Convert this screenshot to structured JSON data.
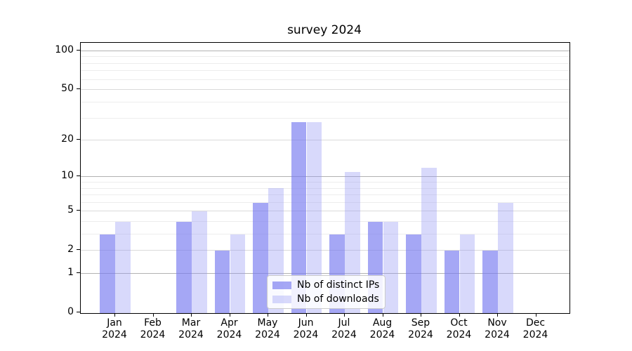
{
  "title": "survey 2024",
  "chart_data": {
    "type": "bar",
    "title": "survey 2024",
    "categories": [
      "Jan",
      "Feb",
      "Mar",
      "Apr",
      "May",
      "Jun",
      "Jul",
      "Aug",
      "Sep",
      "Oct",
      "Nov",
      "Dec"
    ],
    "year_label": "2024",
    "series": [
      {
        "name": "Nb of distinct IPs",
        "color": "rgba(118,121,240,0.66)",
        "values": [
          3,
          0,
          4,
          2,
          6,
          28,
          3,
          4,
          3,
          2,
          2,
          0
        ]
      },
      {
        "name": "Nb of downloads",
        "color": "rgba(148,151,244,0.36)",
        "values": [
          4,
          0,
          5,
          3,
          8,
          28,
          11,
          4,
          12,
          3,
          6,
          0
        ]
      }
    ],
    "xlabel": "",
    "ylabel": "",
    "y_scale": "log10(1+v)",
    "ylim": [
      0,
      114
    ],
    "y_ticks_labeled": [
      0,
      1,
      2,
      5,
      10,
      20,
      50,
      100
    ],
    "y_grid_major": [
      1,
      10,
      100
    ],
    "y_grid_mid": [
      2,
      5,
      20,
      50
    ],
    "y_grid_minor": [
      3,
      4,
      6,
      7,
      8,
      9,
      30,
      40,
      60,
      70,
      80,
      90
    ],
    "grid": "on",
    "legend_position": "lower center"
  }
}
